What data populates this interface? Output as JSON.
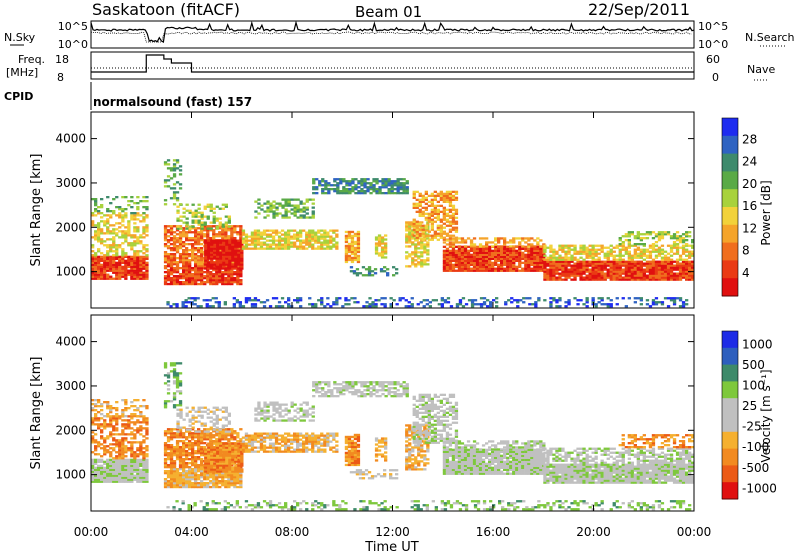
{
  "header": {
    "station": "Saskatoon (fitACF)",
    "beam": "Beam 01",
    "date": "22/Sep/2011"
  },
  "top_panels": {
    "nsky_label": "N.Sky",
    "nsky_ticks": [
      "10^5",
      "10^0"
    ],
    "nsearch_label": "N.Search",
    "nsearch_ticks": [
      "10^5",
      "10^0"
    ],
    "freq_label_1": "Freq.",
    "freq_label_2": "[MHz]",
    "freq_ticks": [
      "18",
      "8"
    ],
    "nave_label": "Nave",
    "nave_ticks": [
      "60",
      "0"
    ],
    "cpid_label": "CPID",
    "cpid_value": "normalsound (fast) 157"
  },
  "chart_data": [
    {
      "type": "heatmap",
      "parameter": "power",
      "ylabel": "Slant Range [km]",
      "ylim": [
        180,
        4600
      ],
      "yticks": [
        "4000",
        "3000",
        "2000",
        "1000"
      ],
      "xticks": [
        "00:00",
        "04:00",
        "08:00",
        "12:00",
        "16:00",
        "20:00",
        "00:00"
      ],
      "xlim_hours": [
        0,
        24
      ],
      "colorbar": {
        "label": "Power [dB]",
        "ticks": [
          "28",
          "24",
          "20",
          "16",
          "12",
          "8",
          "4"
        ],
        "range": [
          0,
          30
        ]
      }
    },
    {
      "type": "heatmap",
      "parameter": "velocity",
      "ylabel": "Slant Range [km]",
      "ylim": [
        180,
        4600
      ],
      "yticks": [
        "4000",
        "3000",
        "2000",
        "1000"
      ],
      "xticks": [
        "00:00",
        "04:00",
        "08:00",
        "12:00",
        "16:00",
        "20:00",
        "00:00"
      ],
      "xlabel": "Time UT",
      "xlim_hours": [
        0,
        24
      ],
      "colorbar": {
        "label": "Velocity [m s⁻¹]",
        "ticks": [
          "1000",
          "500",
          "100",
          "25",
          "-25",
          "-100",
          "-500",
          "-1000"
        ]
      }
    }
  ],
  "colors": {
    "power_scale": [
      "#1e2cf0",
      "#2f63c2",
      "#3e8a6c",
      "#5aaa46",
      "#a8d23c",
      "#f2d23a",
      "#f5a42a",
      "#f06e1e",
      "#ea3a14",
      "#e01010"
    ],
    "velocity_scale": [
      "#1e2ce6",
      "#2e5fbe",
      "#3e8a6a",
      "#7ec83c",
      "#c0c0c0",
      "#c0c0c0",
      "#f5b030",
      "#f28a20",
      "#ec5a16",
      "#e01010"
    ],
    "ground_scatter": "#b4b4b4"
  }
}
